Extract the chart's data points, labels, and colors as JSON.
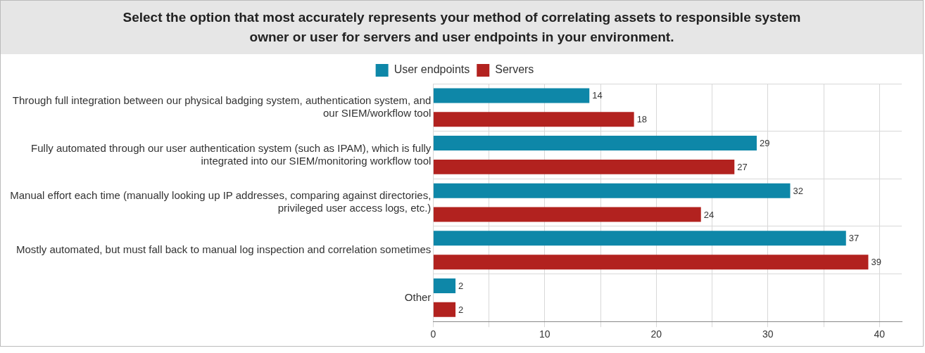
{
  "chart_data": {
    "type": "bar",
    "orientation": "horizontal",
    "title": "Select the option that most accurately represents your method of correlating assets to responsible system owner or user for servers and user endpoints in your environment.",
    "categories": [
      "Through full integration between our physical badging system, authentication system, and our SIEM/workflow tool",
      "Fully automated through our user authentication system (such as IPAM), which is fully integrated into our SIEM/monitoring workflow tool",
      "Manual effort each time (manually looking up IP addresses, comparing against directories, privileged user access logs, etc.)",
      "Mostly automated, but must fall back to manual log inspection and correlation sometimes",
      "Other"
    ],
    "series": [
      {
        "name": "User endpoints",
        "color": "#0e87a8",
        "values": [
          14,
          29,
          32,
          37,
          2
        ]
      },
      {
        "name": "Servers",
        "color": "#b2221f",
        "values": [
          18,
          27,
          24,
          39,
          2
        ]
      }
    ],
    "xlim": [
      0,
      42
    ],
    "xticks": [
      0,
      {
        "value": 5,
        "label": null
      },
      10,
      {
        "value": 15,
        "label": null
      },
      20,
      {
        "value": 25,
        "label": null
      },
      30,
      {
        "value": 35,
        "label": null
      },
      40
    ],
    "grid": true,
    "legend": "top",
    "data_labels": true
  }
}
